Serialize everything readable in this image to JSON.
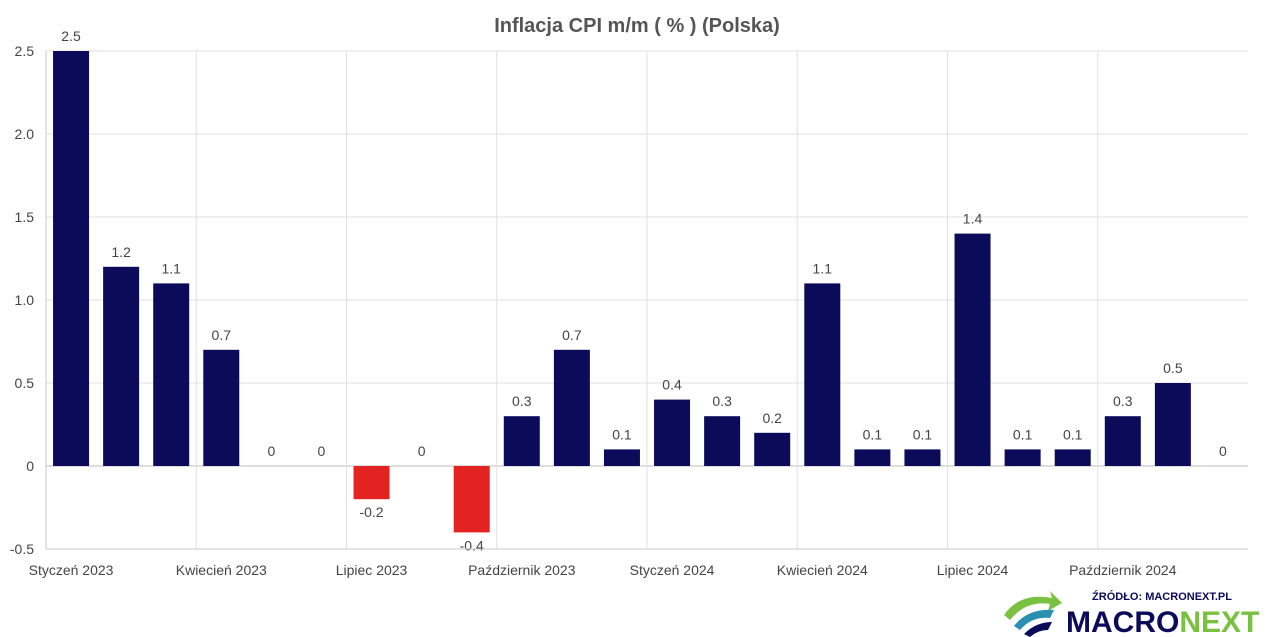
{
  "chart_data": {
    "type": "bar",
    "title": "Inflacja CPI m/m ( % ) (Polska)",
    "xlabel": "",
    "ylabel": "",
    "ylim": [
      -0.5,
      2.5
    ],
    "yticks": [
      "2.5",
      "2.0",
      "1.5",
      "1.0",
      "0.5",
      "0",
      "-0.5"
    ],
    "ytick_values": [
      2.5,
      2.0,
      1.5,
      1.0,
      0.5,
      0,
      -0.5
    ],
    "xtick_labels": [
      "Styczeń 2023",
      "Kwiecień 2023",
      "Lipiec 2023",
      "Październik 2023",
      "Styczeń 2024",
      "Kwiecień 2024",
      "Lipiec 2024",
      "Październik 2024"
    ],
    "values": [
      2.5,
      1.2,
      1.1,
      0.7,
      0,
      0,
      -0.2,
      0,
      -0.4,
      0.3,
      0.7,
      0.1,
      0.4,
      0.3,
      0.2,
      1.1,
      0.1,
      0.1,
      1.4,
      0.1,
      0.1,
      0.3,
      0.5,
      0
    ],
    "value_labels": [
      "2.5",
      "1.2",
      "1.1",
      "0.7",
      "0",
      "0",
      "-0.2",
      "0",
      "-0.4",
      "0.3",
      "0.7",
      "0.1",
      "0.4",
      "0.3",
      "0.2",
      "1.1",
      "0.1",
      "0.1",
      "1.4",
      "0.1",
      "0.1",
      "0.3",
      "0.5",
      "0"
    ],
    "grid": true,
    "legend": "none",
    "colors": {
      "positive": "#0b0b5a",
      "negative": "#e32322"
    }
  },
  "source": {
    "label": "ŹRÓDŁO: MACRONEXT.PL",
    "brand_part1": "MACRO",
    "brand_part2": "NEXT",
    "colors": {
      "navy": "#0b0b5a",
      "green": "#7ac142",
      "teal": "#2a8fb0"
    }
  }
}
